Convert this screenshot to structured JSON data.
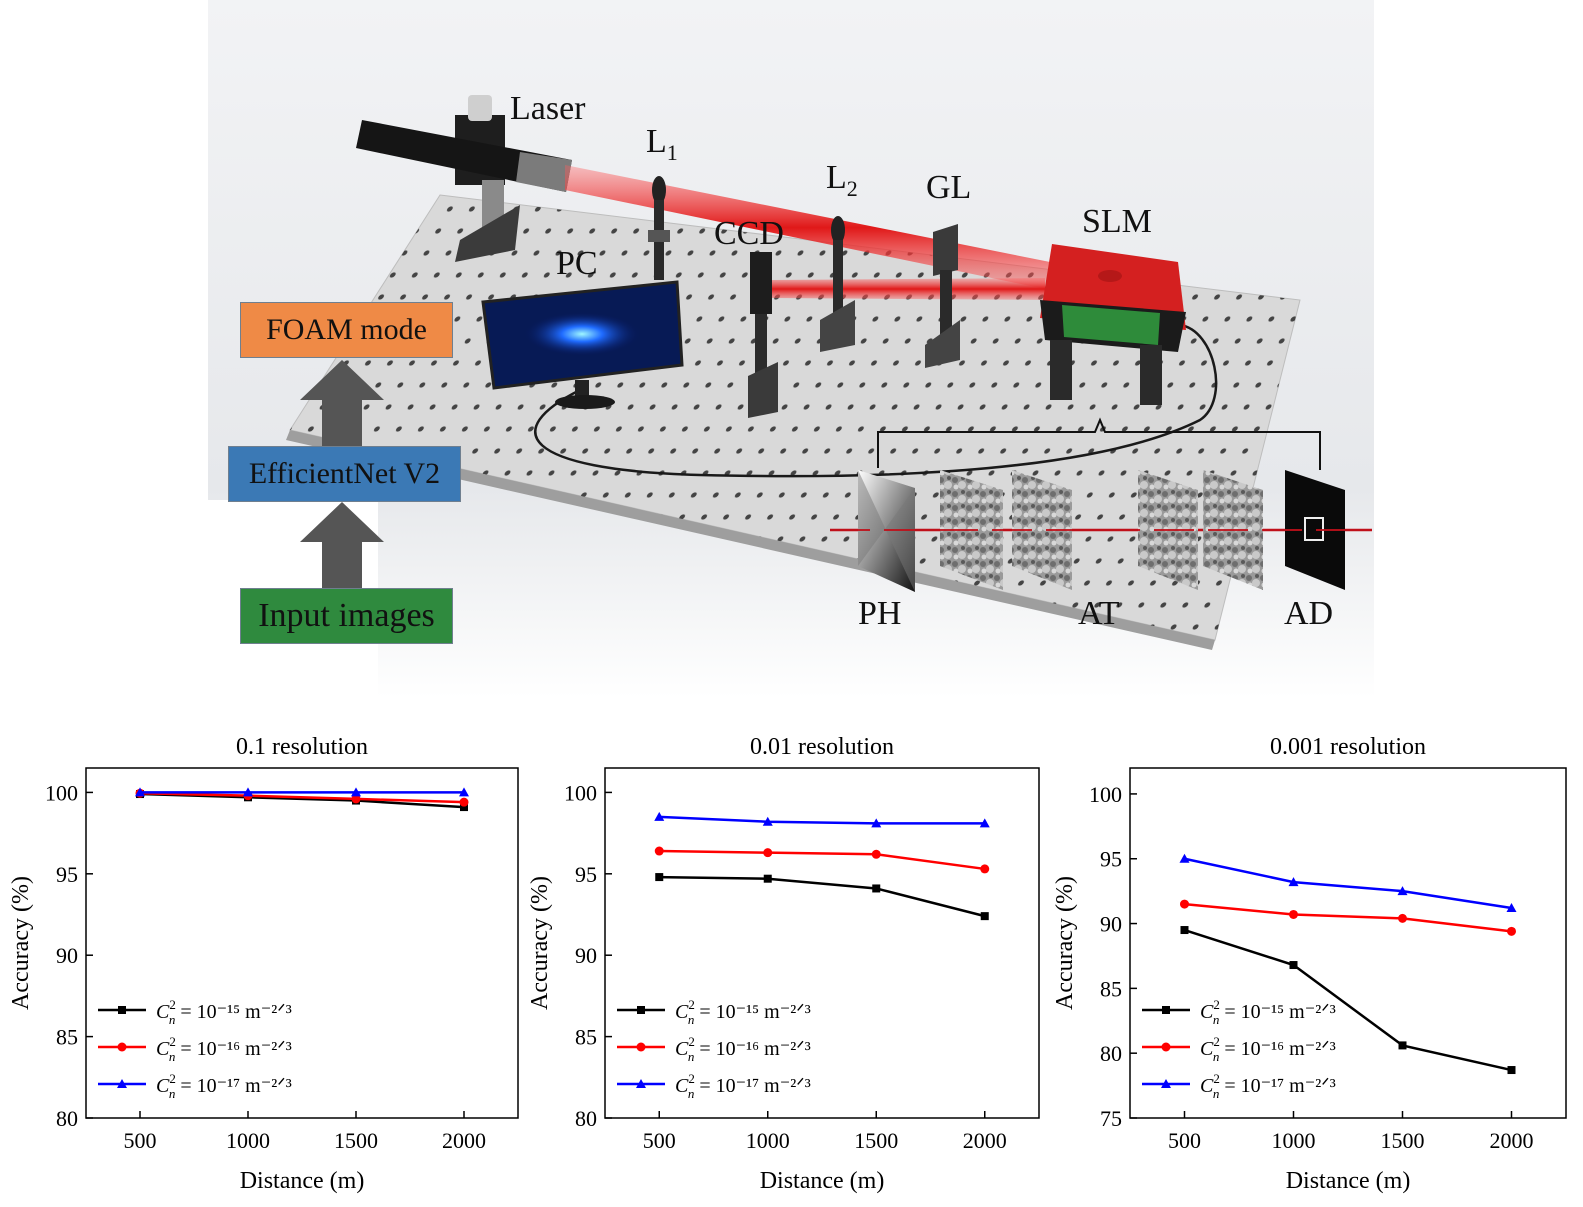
{
  "setup": {
    "labels": {
      "laser": "Laser",
      "l1": "L",
      "l1_sub": "1",
      "l2": "L",
      "l2_sub": "2",
      "gl": "GL",
      "slm": "SLM",
      "ccd": "CCD",
      "pc": "PC",
      "ph": "PH",
      "at": "AT",
      "ad": "AD"
    },
    "flow": {
      "top": "FOAM mode",
      "middle": "EfficientNet V2",
      "bottom": "Input images"
    },
    "colors": {
      "beam": "#e01818",
      "slm_body": "#d42020",
      "slm_panel": "#2e8b3a",
      "box_top": "#ef8a46",
      "box_middle": "#3b79b5",
      "box_bottom": "#2f8a3e",
      "arrow": "#555555"
    }
  },
  "chart_data": [
    {
      "type": "line",
      "title": "0.1 resolution",
      "xlabel": "Distance (m)",
      "ylabel": "Accuracy (%)",
      "x": [
        500,
        1000,
        1500,
        2000
      ],
      "xlim": [
        250,
        2250
      ],
      "xticks": [
        500,
        1000,
        1500,
        2000
      ],
      "ylim": [
        80,
        101.5
      ],
      "yticks": [
        80,
        85,
        90,
        95,
        100
      ],
      "legend_position": "lower-left",
      "series": [
        {
          "name": "10⁻¹⁵ m⁻²ᐟ³",
          "color": "#000000",
          "marker": "square",
          "values": [
            99.9,
            99.7,
            99.5,
            99.1
          ]
        },
        {
          "name": "10⁻¹⁶ m⁻²ᐟ³",
          "color": "#ff0000",
          "marker": "circle",
          "values": [
            99.95,
            99.8,
            99.6,
            99.4
          ]
        },
        {
          "name": "10⁻¹⁷ m⁻²ᐟ³",
          "color": "#0000ff",
          "marker": "triangle",
          "values": [
            100,
            100,
            100,
            100
          ]
        }
      ]
    },
    {
      "type": "line",
      "title": "0.01 resolution",
      "xlabel": "Distance (m)",
      "ylabel": "Accuracy (%)",
      "x": [
        500,
        1000,
        1500,
        2000
      ],
      "xlim": [
        250,
        2250
      ],
      "xticks": [
        500,
        1000,
        1500,
        2000
      ],
      "ylim": [
        80,
        101.5
      ],
      "yticks": [
        80,
        85,
        90,
        95,
        100
      ],
      "legend_position": "lower-left",
      "series": [
        {
          "name": "10⁻¹⁵ m⁻²ᐟ³",
          "color": "#000000",
          "marker": "square",
          "values": [
            94.8,
            94.7,
            94.1,
            92.4
          ]
        },
        {
          "name": "10⁻¹⁶ m⁻²ᐟ³",
          "color": "#ff0000",
          "marker": "circle",
          "values": [
            96.4,
            96.3,
            96.2,
            95.3
          ]
        },
        {
          "name": "10⁻¹⁷ m⁻²ᐟ³",
          "color": "#0000ff",
          "marker": "triangle",
          "values": [
            98.5,
            98.2,
            98.1,
            98.1
          ]
        }
      ]
    },
    {
      "type": "line",
      "title": "0.001 resolution",
      "xlabel": "Distance (m)",
      "ylabel": "Accuracy (%)",
      "x": [
        500,
        1000,
        1500,
        2000
      ],
      "xlim": [
        250,
        2250
      ],
      "xticks": [
        500,
        1000,
        1500,
        2000
      ],
      "ylim": [
        75,
        102
      ],
      "yticks": [
        75,
        80,
        85,
        90,
        95,
        100
      ],
      "legend_position": "lower-left",
      "series": [
        {
          "name": "10⁻¹⁵ m⁻²ᐟ³",
          "color": "#000000",
          "marker": "square",
          "values": [
            89.5,
            86.8,
            80.6,
            78.7
          ]
        },
        {
          "name": "10⁻¹⁶ m⁻²ᐟ³",
          "color": "#ff0000",
          "marker": "circle",
          "values": [
            91.5,
            90.7,
            90.4,
            89.4
          ]
        },
        {
          "name": "10⁻¹⁷ m⁻²ᐟ³",
          "color": "#0000ff",
          "marker": "triangle",
          "values": [
            95.0,
            93.2,
            92.5,
            91.2
          ]
        }
      ]
    }
  ],
  "legend_prefix": "C",
  "legend_sup": "2",
  "legend_sub": "n"
}
